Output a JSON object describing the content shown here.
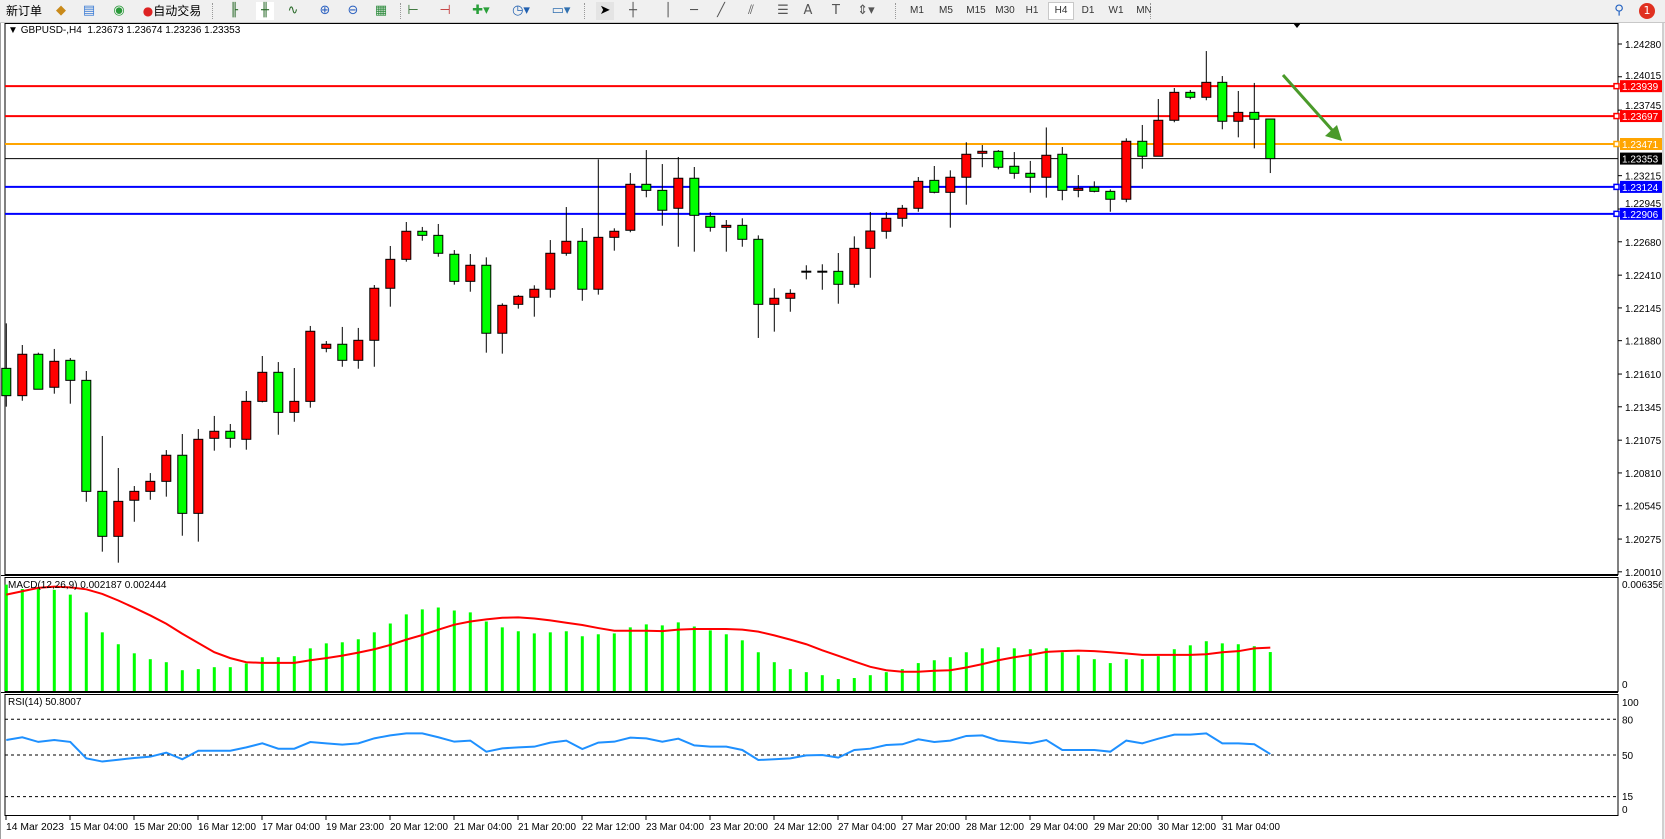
{
  "toolbar": {
    "new_order_label": "新订单",
    "auto_trading_label": "自动交易",
    "icons": [
      "new-order-icon",
      "market-watch-icon",
      "data-window-icon",
      "navigator-icon",
      "auto-trading-icon",
      "bar-chart-icon",
      "candlestick-icon",
      "line-chart-icon",
      "zoom-in-icon",
      "zoom-out-icon",
      "tile-windows-icon",
      "chart-shift-icon",
      "autoscroll-icon",
      "indicators-icon",
      "periods-icon",
      "templates-icon",
      "cursor-icon",
      "crosshair-icon",
      "vertical-line-icon",
      "horizontal-line-icon",
      "trendline-icon",
      "equidistant-channel-icon",
      "fibonacci-icon",
      "text-icon",
      "text-label-icon",
      "arrows-icon",
      "search-icon",
      "notifications-icon"
    ],
    "timeframes": [
      "M1",
      "M5",
      "M15",
      "M30",
      "H1",
      "H4",
      "D1",
      "W1",
      "MN"
    ],
    "selected_timeframe": "H4",
    "notification_count": "1"
  },
  "chart": {
    "symbol": "GBPUSD-,H4",
    "ohlc": "1.23673 1.23674 1.23236 1.23353"
  },
  "chart_data": [
    {
      "type": "candlestick",
      "symbol": "GBPUSD-",
      "timeframe": "H4",
      "bull_color": "#ff0000",
      "bear_color": "#00ff00",
      "ylim": [
        1.2001,
        1.2428
      ],
      "y_ticks": [
        "1.24280",
        "1.24015",
        "1.23745",
        "1.23215",
        "1.22945",
        "1.22680",
        "1.22410",
        "1.22145",
        "1.21880",
        "1.21610",
        "1.21345",
        "1.21075",
        "1.20810",
        "1.20545",
        "1.20275",
        "1.20010"
      ],
      "x_tick_labels": [
        "14 Mar 2023",
        "15 Mar 04:00",
        "15 Mar 20:00",
        "16 Mar 12:00",
        "17 Mar 04:00",
        "19 Mar 23:00",
        "20 Mar 12:00",
        "21 Mar 04:00",
        "21 Mar 20:00",
        "22 Mar 12:00",
        "23 Mar 04:00",
        "23 Mar 20:00",
        "24 Mar 12:00",
        "27 Mar 04:00",
        "27 Mar 20:00",
        "28 Mar 12:00",
        "29 Mar 04:00",
        "29 Mar 20:00",
        "30 Mar 12:00",
        "31 Mar 04:00"
      ],
      "ohlc": [
        [
          1.21656,
          1.2202,
          1.21346,
          1.21435
        ],
        [
          1.21435,
          1.21845,
          1.21394,
          1.2177
        ],
        [
          1.2177,
          1.21783,
          1.21487,
          1.21487
        ],
        [
          1.21503,
          1.21813,
          1.21451,
          1.21713
        ],
        [
          1.21721,
          1.2174,
          1.2137,
          1.21559
        ],
        [
          1.21559,
          1.21635,
          1.20577,
          1.20661
        ],
        [
          1.20661,
          1.21109,
          1.20173,
          1.20297
        ],
        [
          1.20297,
          1.2085,
          1.20084,
          1.2058
        ],
        [
          1.20589,
          1.20704,
          1.20415,
          1.20661
        ],
        [
          1.20661,
          1.20809,
          1.20593,
          1.20742
        ],
        [
          1.20742,
          1.20995,
          1.20618,
          1.20953
        ],
        [
          1.20953,
          1.21125,
          1.20302,
          1.20483
        ],
        [
          1.20483,
          1.21165,
          1.20254,
          1.21082
        ],
        [
          1.2109,
          1.21271,
          1.2099,
          1.21147
        ],
        [
          1.21147,
          1.21206,
          1.21014,
          1.2109
        ],
        [
          1.21082,
          1.21473,
          1.20998,
          1.21389
        ],
        [
          1.21389,
          1.21756,
          1.21381,
          1.21624
        ],
        [
          1.21624,
          1.21707,
          1.21119,
          1.213
        ],
        [
          1.213,
          1.21659,
          1.21224,
          1.21389
        ],
        [
          1.21389,
          1.21999,
          1.21338,
          1.21956
        ],
        [
          1.21818,
          1.21877,
          1.21786,
          1.21851
        ],
        [
          1.21851,
          1.21991,
          1.21669,
          1.21721
        ],
        [
          1.21721,
          1.21983,
          1.21653,
          1.21883
        ],
        [
          1.21883,
          1.2233,
          1.21669,
          1.22304
        ],
        [
          1.22304,
          1.22646,
          1.22155,
          1.22538
        ],
        [
          1.22538,
          1.2284,
          1.22519,
          1.22765
        ],
        [
          1.22765,
          1.228,
          1.22689,
          1.22732
        ],
        [
          1.22732,
          1.22824,
          1.22559,
          1.22587
        ],
        [
          1.22579,
          1.22613,
          1.22333,
          1.2236
        ],
        [
          1.2236,
          1.22581,
          1.22276,
          1.2249
        ],
        [
          1.2249,
          1.22554,
          1.21783,
          1.2194
        ],
        [
          1.2194,
          1.22182,
          1.21775,
          1.22166
        ],
        [
          1.22174,
          1.2225,
          1.22139,
          1.22239
        ],
        [
          1.22231,
          1.22328,
          1.22074,
          1.22296
        ],
        [
          1.22296,
          1.22694,
          1.22228,
          1.22587
        ],
        [
          1.22587,
          1.22961,
          1.22567,
          1.22684
        ],
        [
          1.22684,
          1.22791,
          1.22203,
          1.22296
        ],
        [
          1.22296,
          1.23347,
          1.22252,
          1.22716
        ],
        [
          1.22716,
          1.22789,
          1.22608,
          1.22765
        ],
        [
          1.22773,
          1.23236,
          1.22757,
          1.23145
        ],
        [
          1.23145,
          1.23422,
          1.2304,
          1.23096
        ],
        [
          1.23096,
          1.23309,
          1.2281,
          1.22935
        ],
        [
          1.22951,
          1.23366,
          1.2264,
          1.23194
        ],
        [
          1.23194,
          1.23285,
          1.226,
          1.22894
        ],
        [
          1.22886,
          1.22921,
          1.22762,
          1.22797
        ],
        [
          1.22797,
          1.22856,
          1.226,
          1.22813
        ],
        [
          1.22813,
          1.2287,
          1.2264,
          1.227
        ],
        [
          1.227,
          1.22732,
          1.21902,
          1.22174
        ],
        [
          1.22174,
          1.22304,
          1.21953,
          1.22223
        ],
        [
          1.22223,
          1.22296,
          1.22114,
          1.22263
        ],
        [
          1.22438,
          1.2249,
          1.22376,
          1.22438
        ],
        [
          1.22438,
          1.22498,
          1.22292,
          1.22438
        ],
        [
          1.22441,
          1.22589,
          1.22179,
          1.22336
        ],
        [
          1.22336,
          1.22724,
          1.22309,
          1.22627
        ],
        [
          1.22627,
          1.22921,
          1.22389,
          1.22767
        ],
        [
          1.22765,
          1.22921,
          1.22705,
          1.2287
        ],
        [
          1.2287,
          1.22978,
          1.22802,
          1.22951
        ],
        [
          1.22951,
          1.23204,
          1.22923,
          1.23169
        ],
        [
          1.23177,
          1.23293,
          1.23072,
          1.2308
        ],
        [
          1.2308,
          1.23258,
          1.22794,
          1.23202
        ],
        [
          1.23202,
          1.23485,
          1.2298,
          1.23388
        ],
        [
          1.23396,
          1.23463,
          1.23283,
          1.23412
        ],
        [
          1.23412,
          1.23422,
          1.23266,
          1.23283
        ],
        [
          1.23291,
          1.23406,
          1.2319,
          1.23234
        ],
        [
          1.23234,
          1.23334,
          1.23077,
          1.23202
        ],
        [
          1.23202,
          1.23605,
          1.23037,
          1.2338
        ],
        [
          1.23388,
          1.23447,
          1.23016,
          1.23096
        ],
        [
          1.23096,
          1.2322,
          1.2304,
          1.23113
        ],
        [
          1.23121,
          1.23169,
          1.2308,
          1.23088
        ],
        [
          1.23088,
          1.23104,
          1.22923,
          1.23024
        ],
        [
          1.23024,
          1.23517,
          1.23,
          1.23493
        ],
        [
          1.23493,
          1.23625,
          1.23271,
          1.23372
        ],
        [
          1.23372,
          1.23835,
          1.23372,
          1.23663
        ],
        [
          1.23663,
          1.23924,
          1.23647,
          1.23889
        ],
        [
          1.23889,
          1.23908,
          1.23833,
          1.23849
        ],
        [
          1.23849,
          1.24223,
          1.23825,
          1.2397
        ],
        [
          1.2397,
          1.24021,
          1.2359,
          1.23655
        ],
        [
          1.23655,
          1.239,
          1.23525,
          1.23727
        ],
        [
          1.23727,
          1.23965,
          1.23436,
          1.23671
        ],
        [
          1.23673,
          1.23674,
          1.23236,
          1.23353
        ]
      ],
      "horizontal_lines": [
        {
          "price": "1.23939",
          "color": "#ff0000"
        },
        {
          "price": "1.23697",
          "color": "#ff0000"
        },
        {
          "price": "1.23471",
          "color": "#ffa500"
        },
        {
          "price": "1.23124",
          "color": "#0000ff"
        },
        {
          "price": "1.22906",
          "color": "#0000ff"
        }
      ],
      "current_price": "1.23353",
      "arrow_color": "#4a9a2a"
    },
    {
      "type": "bar",
      "label": "MACD(12,26,9) 0.002187 0.002444",
      "ylim": [
        0,
        0.006356
      ],
      "y_ticks": [
        "0.006356",
        "0"
      ],
      "histogram_color": "#00ff00",
      "signal_color": "#ff0000",
      "macd": [
        0.00598,
        0.00574,
        0.00583,
        0.00569,
        0.00542,
        0.00442,
        0.0033,
        0.00263,
        0.00212,
        0.00179,
        0.00162,
        0.00117,
        0.00123,
        0.00134,
        0.00134,
        0.00155,
        0.0019,
        0.0019,
        0.00196,
        0.0024,
        0.00268,
        0.00274,
        0.00291,
        0.0033,
        0.0038,
        0.00431,
        0.00459,
        0.0047,
        0.00453,
        0.00442,
        0.00391,
        0.00358,
        0.00336,
        0.00324,
        0.0033,
        0.00336,
        0.00308,
        0.00319,
        0.00324,
        0.00358,
        0.00375,
        0.00369,
        0.00386,
        0.00363,
        0.00341,
        0.00319,
        0.00285,
        0.00218,
        0.00162,
        0.00123,
        0.00106,
        0.00089,
        0.00067,
        0.00073,
        0.00089,
        0.00106,
        0.00123,
        0.00157,
        0.00173,
        0.0019,
        0.00218,
        0.0024,
        0.00246,
        0.0024,
        0.00235,
        0.0024,
        0.00218,
        0.00201,
        0.00179,
        0.00157,
        0.00179,
        0.00179,
        0.00196,
        0.00235,
        0.00257,
        0.0028,
        0.00268,
        0.00263,
        0.00252,
        0.00219
      ],
      "signal": [
        0.00542,
        0.00561,
        0.0058,
        0.00587,
        0.00583,
        0.00572,
        0.00546,
        0.00509,
        0.00468,
        0.00425,
        0.00378,
        0.00322,
        0.0027,
        0.00218,
        0.00185,
        0.00162,
        0.00158,
        0.00158,
        0.00158,
        0.00173,
        0.00185,
        0.00199,
        0.00216,
        0.00235,
        0.00259,
        0.00289,
        0.00315,
        0.00345,
        0.00373,
        0.00391,
        0.00403,
        0.00412,
        0.00414,
        0.00408,
        0.00397,
        0.00384,
        0.00371,
        0.00354,
        0.00339,
        0.00339,
        0.00339,
        0.00337,
        0.00345,
        0.00349,
        0.00349,
        0.00349,
        0.00345,
        0.00334,
        0.00313,
        0.00289,
        0.00263,
        0.00229,
        0.00198,
        0.00166,
        0.00136,
        0.00117,
        0.00108,
        0.00108,
        0.00114,
        0.00117,
        0.00132,
        0.00151,
        0.00173,
        0.0019,
        0.00203,
        0.0022,
        0.00224,
        0.00227,
        0.00224,
        0.00218,
        0.00211,
        0.00203,
        0.00203,
        0.00203,
        0.00203,
        0.00207,
        0.00218,
        0.00224,
        0.0024,
        0.00244
      ]
    },
    {
      "type": "line",
      "label": "RSI(14) 50.8007",
      "ylim": [
        0,
        100
      ],
      "y_ticks": [
        "100",
        "80",
        "50",
        "15",
        "0"
      ],
      "levels": [
        80,
        50,
        15
      ],
      "line_color": "#1e90ff",
      "values": [
        62.6,
        64.9,
        61.0,
        62.6,
        61.0,
        47.2,
        44.5,
        46.0,
        47.5,
        48.6,
        52.0,
        46.4,
        53.6,
        53.6,
        53.6,
        56.4,
        59.8,
        55.3,
        55.3,
        60.9,
        59.8,
        58.7,
        59.8,
        64.0,
        66.5,
        68.2,
        68.2,
        64.9,
        61.2,
        62.1,
        52.8,
        55.6,
        56.4,
        57.0,
        60.4,
        62.1,
        55.0,
        60.4,
        61.2,
        64.6,
        64.0,
        61.2,
        63.7,
        58.1,
        57.0,
        57.0,
        54.2,
        45.8,
        46.4,
        47.2,
        49.7,
        50.0,
        47.8,
        54.2,
        55.3,
        58.4,
        59.0,
        63.2,
        60.9,
        62.1,
        66.0,
        66.5,
        62.1,
        60.9,
        59.8,
        62.6,
        54.2,
        54.2,
        54.2,
        52.8,
        62.1,
        59.8,
        63.7,
        67.1,
        67.1,
        68.2,
        59.8,
        59.8,
        59.0,
        50.8
      ]
    }
  ]
}
